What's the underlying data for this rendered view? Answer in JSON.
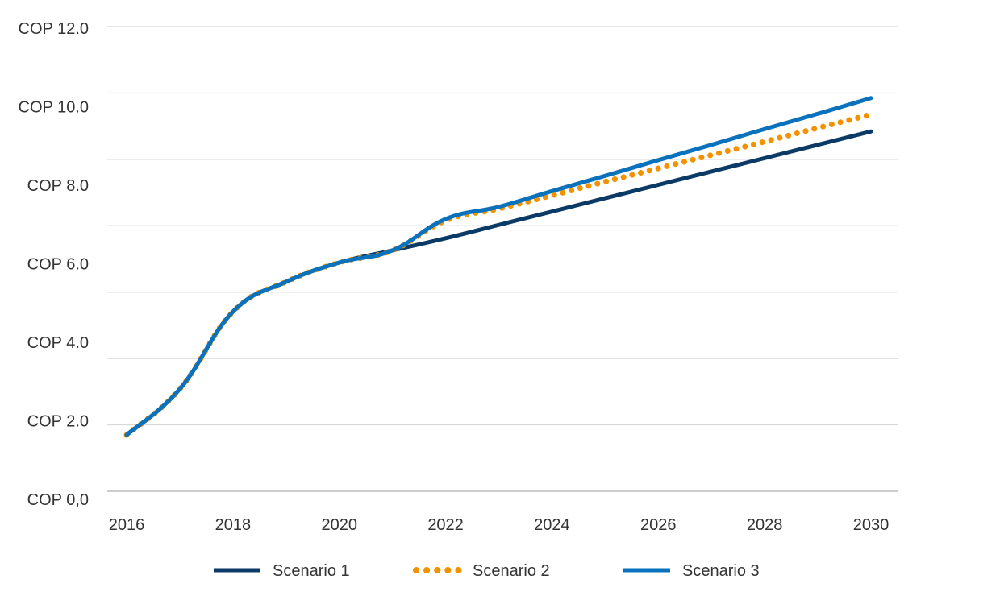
{
  "chart_data": {
    "type": "line",
    "title": "",
    "xlabel": "",
    "ylabel": "",
    "x": [
      2016,
      2017,
      2018,
      2019,
      2020,
      2021,
      2022,
      2023,
      2024,
      2025,
      2026,
      2027,
      2028,
      2029,
      2030
    ],
    "x_tick_labels": [
      "2016",
      "2018",
      "2020",
      "2022",
      "2024",
      "2026",
      "2028",
      "2030"
    ],
    "y_tick_labels": [
      "COP 0,0",
      "COP 2.0",
      "COP 4.0",
      "COP 6.0",
      "COP 8.0",
      "COP 10.0",
      "COP 12.0"
    ],
    "ylim": [
      0,
      12
    ],
    "grid": true,
    "legend_position": "bottom",
    "series": [
      {
        "name": "Scenario 1",
        "color": "#0b3a66",
        "style": "solid",
        "values": [
          1.64,
          2.81,
          4.78,
          5.54,
          6.03,
          6.34,
          6.65,
          6.99,
          7.33,
          7.67,
          8.01,
          8.35,
          8.69,
          9.03,
          9.37
        ]
      },
      {
        "name": "Scenario 2",
        "color": "#f39200",
        "style": "dotted",
        "values": [
          1.64,
          2.81,
          4.78,
          5.54,
          6.03,
          6.34,
          7.1,
          7.4,
          7.74,
          8.09,
          8.43,
          8.77,
          9.11,
          9.46,
          9.8
        ]
      },
      {
        "name": "Scenario 3",
        "color": "#0a72bd",
        "style": "solid",
        "values": [
          1.64,
          2.81,
          4.78,
          5.54,
          6.03,
          6.34,
          7.14,
          7.45,
          7.85,
          8.24,
          8.64,
          9.03,
          9.43,
          9.82,
          10.22
        ]
      }
    ]
  }
}
